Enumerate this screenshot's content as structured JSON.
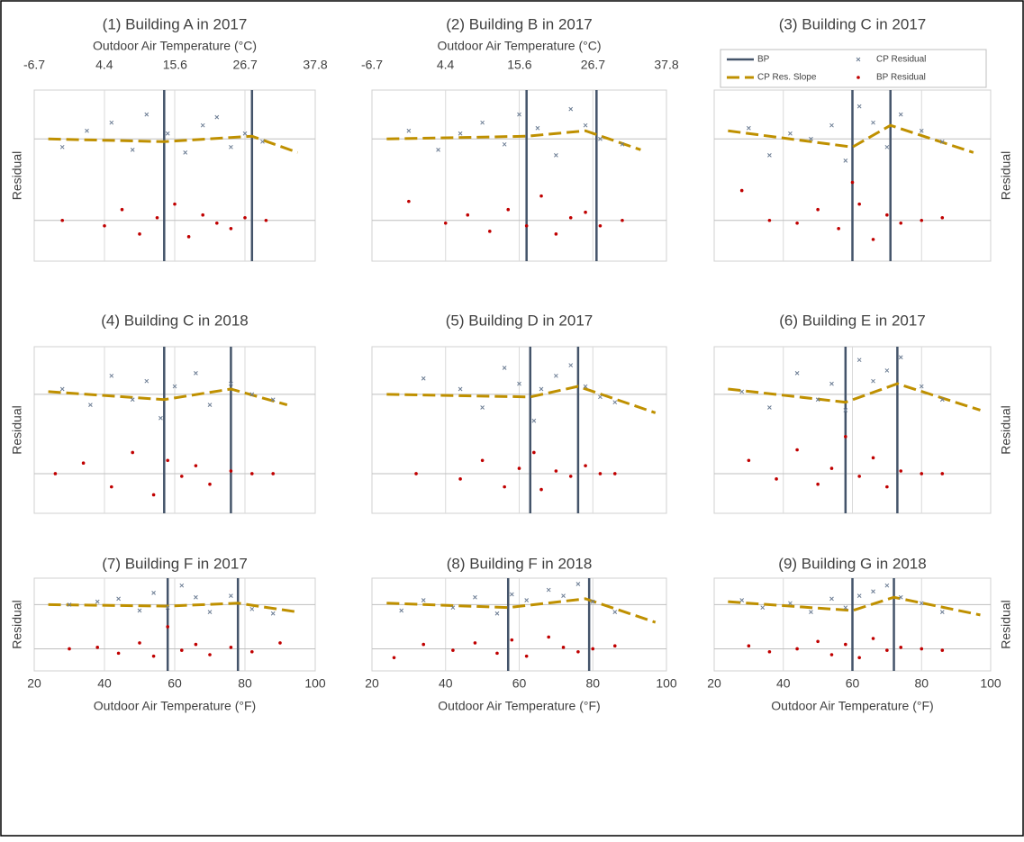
{
  "chart_data": [
    {
      "type": "scatter",
      "title": "(1) Building A in 2017",
      "ylabel": "Residual",
      "ylabel_side": "left",
      "x2label": "Outdoor Air Temperature (°C)",
      "x2lim": [
        -6.7,
        37.8
      ],
      "x2ticks": [
        -6.7,
        4.4,
        15.6,
        26.7,
        37.8
      ],
      "xlim": [
        20,
        100
      ],
      "xgrid": [
        40,
        60,
        80
      ],
      "ylim": [
        -4.5,
        1.8
      ],
      "zero_lines": [
        0,
        -3
      ],
      "series": [
        {
          "kind": "vline",
          "color": "#44546a",
          "x": [
            57,
            82
          ]
        },
        {
          "kind": "line",
          "color": "#bf9000",
          "x": [
            24,
            57,
            82,
            95
          ],
          "values": [
            0,
            -0.1,
            0.1,
            -0.5
          ]
        },
        {
          "kind": "x",
          "color": "#6b7c93",
          "x": [
            28,
            35,
            42,
            48,
            52,
            58,
            63,
            68,
            72,
            76,
            80,
            85
          ],
          "values": [
            -0.3,
            0.3,
            0.6,
            -0.4,
            0.9,
            0.2,
            -0.5,
            0.5,
            0.8,
            -0.3,
            0.2,
            -0.1
          ]
        },
        {
          "kind": "dot",
          "color": "#c00000",
          "x": [
            28,
            40,
            45,
            50,
            55,
            60,
            64,
            68,
            72,
            76,
            80,
            86
          ],
          "values": [
            -3,
            -3.2,
            -2.6,
            -3.5,
            -2.9,
            -2.4,
            -3.6,
            -2.8,
            -3.1,
            -3.3,
            -2.9,
            -3
          ]
        }
      ]
    },
    {
      "type": "scatter",
      "title": "(2) Building B in 2017",
      "x2label": "Outdoor Air Temperature (°C)",
      "x2lim": [
        -6.7,
        37.8
      ],
      "x2ticks": [
        -6.7,
        4.4,
        15.6,
        26.7,
        37.8
      ],
      "xlim": [
        20,
        100
      ],
      "xgrid": [
        40,
        60,
        80
      ],
      "ylim": [
        -4.5,
        1.8
      ],
      "zero_lines": [
        0,
        -3
      ],
      "series": [
        {
          "kind": "vline",
          "color": "#44546a",
          "x": [
            62,
            81
          ]
        },
        {
          "kind": "line",
          "color": "#bf9000",
          "x": [
            24,
            62,
            78,
            93
          ],
          "values": [
            0,
            0.1,
            0.3,
            -0.4
          ]
        },
        {
          "kind": "x",
          "color": "#6b7c93",
          "x": [
            30,
            38,
            44,
            50,
            56,
            60,
            65,
            70,
            74,
            78,
            82,
            88
          ],
          "values": [
            0.3,
            -0.4,
            0.2,
            0.6,
            -0.2,
            0.9,
            0.4,
            -0.6,
            1.1,
            0.5,
            0,
            -0.2
          ]
        },
        {
          "kind": "dot",
          "color": "#c00000",
          "x": [
            30,
            40,
            46,
            52,
            57,
            62,
            66,
            70,
            74,
            78,
            82,
            88
          ],
          "values": [
            -2.3,
            -3.1,
            -2.8,
            -3.4,
            -2.6,
            -3.2,
            -2.1,
            -3.5,
            -2.9,
            -2.7,
            -3.2,
            -3
          ]
        }
      ]
    },
    {
      "type": "scatter",
      "title": "(3) Building C in 2017",
      "ylabel": "Residual",
      "ylabel_side": "right",
      "legend": true,
      "xlim": [
        20,
        100
      ],
      "xgrid": [
        40,
        60,
        80
      ],
      "ylim": [
        -4.5,
        1.8
      ],
      "zero_lines": [
        0,
        -3
      ],
      "series": [
        {
          "kind": "vline",
          "name": "BP",
          "color": "#44546a",
          "x": [
            60,
            71
          ]
        },
        {
          "kind": "line",
          "name": "CP Res. Slope",
          "color": "#bf9000",
          "x": [
            24,
            60,
            71,
            95
          ],
          "values": [
            0.3,
            -0.3,
            0.5,
            -0.5
          ]
        },
        {
          "kind": "x",
          "name": "CP Residual",
          "color": "#6b7c93",
          "x": [
            30,
            36,
            42,
            48,
            54,
            58,
            62,
            66,
            70,
            74,
            80,
            86
          ],
          "values": [
            0.4,
            -0.6,
            0.2,
            0,
            0.5,
            -0.8,
            1.2,
            0.6,
            -0.3,
            0.9,
            0.3,
            -0.1
          ]
        },
        {
          "kind": "dot",
          "name": "BP Residual",
          "color": "#c00000",
          "x": [
            28,
            36,
            44,
            50,
            56,
            60,
            62,
            66,
            70,
            74,
            80,
            86
          ],
          "values": [
            -1.9,
            -3,
            -3.1,
            -2.6,
            -3.3,
            -1.6,
            -2.4,
            -3.7,
            -2.8,
            -3.1,
            -3,
            -2.9
          ]
        }
      ]
    },
    {
      "type": "scatter",
      "title": "(4) Building C in 2018",
      "ylabel": "Residual",
      "ylabel_side": "left",
      "xlim": [
        20,
        100
      ],
      "xgrid": [
        40,
        60,
        80
      ],
      "ylim": [
        -4.5,
        1.8
      ],
      "zero_lines": [
        0,
        -3
      ],
      "series": [
        {
          "kind": "vline",
          "color": "#44546a",
          "x": [
            57,
            76
          ]
        },
        {
          "kind": "line",
          "color": "#bf9000",
          "x": [
            24,
            57,
            76,
            92
          ],
          "values": [
            0.1,
            -0.2,
            0.2,
            -0.4
          ]
        },
        {
          "kind": "x",
          "color": "#6b7c93",
          "x": [
            28,
            36,
            42,
            48,
            52,
            56,
            60,
            66,
            70,
            76,
            82,
            88
          ],
          "values": [
            0.2,
            -0.4,
            0.7,
            -0.2,
            0.5,
            -0.9,
            0.3,
            0.8,
            -0.4,
            0.4,
            0,
            -0.2
          ]
        },
        {
          "kind": "dot",
          "color": "#c00000",
          "x": [
            26,
            34,
            42,
            48,
            54,
            58,
            62,
            66,
            70,
            76,
            82,
            88
          ],
          "values": [
            -3,
            -2.6,
            -3.5,
            -2.2,
            -3.8,
            -2.5,
            -3.1,
            -2.7,
            -3.4,
            -2.9,
            -3,
            -3
          ]
        }
      ]
    },
    {
      "type": "scatter",
      "title": "(5) Building D in 2017",
      "xlim": [
        20,
        100
      ],
      "xgrid": [
        40,
        60,
        80
      ],
      "ylim": [
        -4.5,
        1.8
      ],
      "zero_lines": [
        0,
        -3
      ],
      "series": [
        {
          "kind": "vline",
          "color": "#44546a",
          "x": [
            63,
            76
          ]
        },
        {
          "kind": "line",
          "color": "#bf9000",
          "x": [
            24,
            63,
            76,
            97
          ],
          "values": [
            0,
            -0.1,
            0.3,
            -0.7
          ]
        },
        {
          "kind": "x",
          "color": "#6b7c93",
          "x": [
            34,
            44,
            50,
            56,
            60,
            64,
            66,
            70,
            74,
            78,
            82,
            86
          ],
          "values": [
            0.6,
            0.2,
            -0.5,
            1,
            0.4,
            -1,
            0.2,
            0.7,
            1.1,
            0.3,
            -0.1,
            -0.3
          ]
        },
        {
          "kind": "dot",
          "color": "#c00000",
          "x": [
            32,
            44,
            50,
            56,
            60,
            64,
            66,
            70,
            74,
            78,
            82,
            86
          ],
          "values": [
            -3,
            -3.2,
            -2.5,
            -3.5,
            -2.8,
            -2.2,
            -3.6,
            -2.9,
            -3.1,
            -2.7,
            -3,
            -3
          ]
        }
      ]
    },
    {
      "type": "scatter",
      "title": "(6) Building E in 2017",
      "ylabel": "Residual",
      "ylabel_side": "right",
      "xlim": [
        20,
        100
      ],
      "xgrid": [
        40,
        60,
        80
      ],
      "ylim": [
        -4.5,
        1.8
      ],
      "zero_lines": [
        0,
        -3
      ],
      "series": [
        {
          "kind": "vline",
          "color": "#44546a",
          "x": [
            58,
            73
          ]
        },
        {
          "kind": "line",
          "color": "#bf9000",
          "x": [
            24,
            58,
            73,
            97
          ],
          "values": [
            0.2,
            -0.3,
            0.4,
            -0.6
          ]
        },
        {
          "kind": "x",
          "color": "#6b7c93",
          "x": [
            28,
            36,
            44,
            50,
            54,
            58,
            62,
            66,
            70,
            74,
            80,
            86
          ],
          "values": [
            0.1,
            -0.5,
            0.8,
            -0.2,
            0.4,
            -0.6,
            1.3,
            0.5,
            0.9,
            1.4,
            0.3,
            -0.2
          ]
        },
        {
          "kind": "dot",
          "color": "#c00000",
          "x": [
            30,
            38,
            44,
            50,
            54,
            58,
            62,
            66,
            70,
            74,
            80,
            86
          ],
          "values": [
            -2.5,
            -3.2,
            -2.1,
            -3.4,
            -2.8,
            -1.6,
            -3.1,
            -2.4,
            -3.5,
            -2.9,
            -3,
            -3
          ]
        }
      ]
    },
    {
      "type": "scatter",
      "title": "(7) Building F in 2017",
      "ylabel": "Residual",
      "ylabel_side": "left",
      "xlabel": "Outdoor Air Temperature (°F)",
      "xlim": [
        20,
        100
      ],
      "xticks": [
        20,
        40,
        60,
        80,
        100
      ],
      "ylim": [
        -4.5,
        1.8
      ],
      "zero_lines": [
        0,
        -3
      ],
      "series": [
        {
          "kind": "vline",
          "color": "#44546a",
          "x": [
            58,
            78
          ]
        },
        {
          "kind": "line",
          "color": "#bf9000",
          "x": [
            24,
            58,
            78,
            95
          ],
          "values": [
            0,
            -0.1,
            0.1,
            -0.5
          ]
        },
        {
          "kind": "x",
          "color": "#6b7c93",
          "x": [
            30,
            38,
            44,
            50,
            54,
            58,
            62,
            66,
            70,
            76,
            82,
            88
          ],
          "values": [
            0,
            0.2,
            0.4,
            -0.4,
            0.8,
            -0.2,
            1.3,
            0.5,
            -0.5,
            0.6,
            -0.3,
            -0.6
          ]
        },
        {
          "kind": "dot",
          "color": "#c00000",
          "x": [
            30,
            38,
            44,
            50,
            54,
            58,
            62,
            66,
            70,
            76,
            82,
            90
          ],
          "values": [
            -3,
            -2.9,
            -3.3,
            -2.6,
            -3.5,
            -1.5,
            -3.1,
            -2.7,
            -3.4,
            -2.9,
            -3.2,
            -2.6
          ]
        }
      ]
    },
    {
      "type": "scatter",
      "title": "(8) Building F in 2018",
      "xlabel": "Outdoor Air Temperature (°F)",
      "xlim": [
        20,
        100
      ],
      "xticks": [
        20,
        40,
        60,
        80,
        100
      ],
      "ylim": [
        -4.5,
        1.8
      ],
      "zero_lines": [
        0,
        -3
      ],
      "series": [
        {
          "kind": "vline",
          "color": "#44546a",
          "x": [
            57,
            79
          ]
        },
        {
          "kind": "line",
          "color": "#bf9000",
          "x": [
            24,
            57,
            78,
            97
          ],
          "values": [
            0.1,
            -0.2,
            0.4,
            -1.2
          ]
        },
        {
          "kind": "x",
          "color": "#6b7c93",
          "x": [
            28,
            34,
            42,
            48,
            54,
            58,
            62,
            68,
            72,
            76,
            80,
            86
          ],
          "values": [
            -0.4,
            0.3,
            -0.2,
            0.5,
            -0.6,
            0.7,
            0.3,
            1,
            0.6,
            1.4,
            0.2,
            -0.5
          ]
        },
        {
          "kind": "dot",
          "color": "#c00000",
          "x": [
            26,
            34,
            42,
            48,
            54,
            58,
            62,
            68,
            72,
            76,
            80,
            86
          ],
          "values": [
            -3.6,
            -2.7,
            -3.1,
            -2.6,
            -3.3,
            -2.4,
            -3.5,
            -2.2,
            -2.9,
            -3.2,
            -3,
            -2.8
          ]
        }
      ]
    },
    {
      "type": "scatter",
      "title": "(9) Building G in 2018",
      "ylabel": "Residual",
      "ylabel_side": "right",
      "xlabel": "Outdoor Air Temperature (°F)",
      "xlim": [
        20,
        100
      ],
      "xticks": [
        20,
        40,
        60,
        80,
        100
      ],
      "ylim": [
        -4.5,
        1.8
      ],
      "zero_lines": [
        0,
        -3
      ],
      "series": [
        {
          "kind": "vline",
          "color": "#44546a",
          "x": [
            60,
            72
          ]
        },
        {
          "kind": "line",
          "color": "#bf9000",
          "x": [
            24,
            60,
            72,
            97
          ],
          "values": [
            0.2,
            -0.4,
            0.5,
            -0.7
          ]
        },
        {
          "kind": "x",
          "color": "#6b7c93",
          "x": [
            28,
            34,
            42,
            48,
            54,
            58,
            62,
            66,
            70,
            74,
            80,
            86
          ],
          "values": [
            0.3,
            -0.2,
            0.1,
            -0.5,
            0.4,
            -0.2,
            0.6,
            0.9,
            1.3,
            0.5,
            0.1,
            -0.5
          ]
        },
        {
          "kind": "dot",
          "color": "#c00000",
          "x": [
            30,
            36,
            44,
            50,
            54,
            58,
            62,
            66,
            70,
            74,
            80,
            86
          ],
          "values": [
            -2.8,
            -3.2,
            -3,
            -2.5,
            -3.4,
            -2.7,
            -3.6,
            -2.3,
            -3.1,
            -2.9,
            -3,
            -3.1
          ]
        }
      ]
    }
  ]
}
